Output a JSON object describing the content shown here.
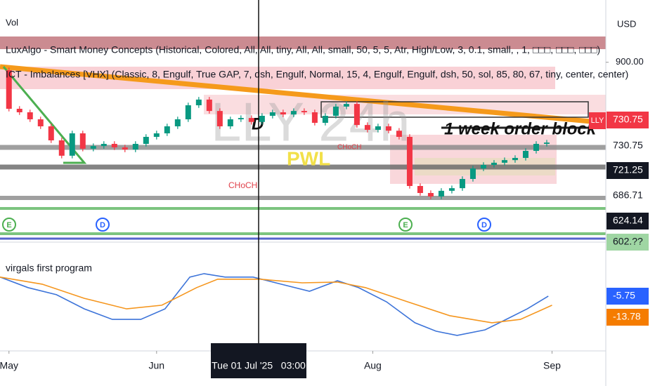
{
  "header": {
    "volume_label": "Vol",
    "currency": "USD",
    "indicators": [
      "LuxAlgo - Smart Money Concepts (Historical, Colored, All, All, tiny, All, All, small, 50, 5, 5, Atr, High/Low, 3, 0.1, small, , 1, □□□, □□□, □□□)",
      "ICT - Imbalances [VHX] (Classic, 8, Engulf, True GAP, 7, dsh, Engulf, Normal, 15, 4, Engulf, Engulf, dsh, 50, sol, 85, 80, 67, tiny, center, center)"
    ]
  },
  "crosshair_label": "Tue 01 Jul '25   03:00",
  "chart_data": [
    {
      "type": "candlestick",
      "symbol": "LLY",
      "watermark": "LLY 24h",
      "up_color": "#089981",
      "down_color": "#f23645",
      "x": [
        0,
        2,
        4,
        6,
        8,
        10,
        12,
        14,
        16,
        18,
        20,
        22,
        24,
        26,
        28,
        30,
        32,
        34,
        36,
        38,
        40,
        42,
        44,
        46,
        48,
        50,
        52,
        54,
        56,
        58,
        60,
        62,
        64,
        66,
        68,
        70,
        72,
        74,
        76,
        78,
        80,
        82,
        84,
        86,
        88,
        90,
        92,
        94,
        96,
        98,
        100,
        102
      ],
      "open": [
        882,
        794,
        786,
        770,
        754,
        722,
        687,
        738,
        703,
        709,
        714,
        706,
        701,
        714,
        730,
        738,
        754,
        770,
        802,
        815,
        789,
        754,
        770,
        773,
        764,
        778,
        786,
        781,
        789,
        786,
        762,
        778,
        799,
        805,
        757,
        746,
        754,
        744,
        730,
        618,
        602,
        594,
        607,
        613,
        634,
        658,
        666,
        671,
        677,
        682,
        698,
        714
      ],
      "high": [
        888,
        800,
        792,
        776,
        760,
        728,
        744,
        744,
        715,
        720,
        720,
        712,
        720,
        736,
        744,
        760,
        776,
        808,
        821,
        821,
        795,
        776,
        779,
        779,
        784,
        792,
        792,
        795,
        795,
        792,
        784,
        805,
        811,
        811,
        763,
        760,
        760,
        750,
        736,
        624,
        608,
        613,
        619,
        640,
        664,
        672,
        677,
        683,
        688,
        704,
        720,
        723
      ],
      "low": [
        788,
        780,
        764,
        748,
        716,
        681,
        681,
        697,
        697,
        703,
        700,
        695,
        695,
        708,
        724,
        732,
        748,
        764,
        796,
        783,
        748,
        748,
        764,
        758,
        758,
        772,
        775,
        775,
        780,
        756,
        756,
        772,
        793,
        751,
        740,
        740,
        738,
        724,
        612,
        596,
        588,
        588,
        601,
        607,
        628,
        652,
        660,
        665,
        671,
        676,
        692,
        708
      ],
      "close": [
        794,
        786,
        770,
        754,
        722,
        687,
        738,
        703,
        709,
        714,
        706,
        701,
        714,
        730,
        738,
        754,
        770,
        802,
        815,
        789,
        754,
        770,
        773,
        764,
        778,
        786,
        781,
        789,
        786,
        762,
        778,
        799,
        805,
        757,
        746,
        754,
        744,
        730,
        618,
        602,
        594,
        607,
        613,
        634,
        658,
        666,
        671,
        677,
        682,
        698,
        714,
        717
      ],
      "xlim": [
        -1.7,
        113.2
      ],
      "ylim": [
        490,
        970
      ],
      "xticks": [
        {
          "value": 0,
          "label": "May"
        },
        {
          "value": 28,
          "label": "Jun"
        },
        {
          "value": 69,
          "label": "Aug"
        },
        {
          "value": 103,
          "label": "Sep"
        }
      ],
      "yticks": [
        {
          "value": 900,
          "label": "900.00"
        }
      ],
      "price_tags": [
        "730.75",
        "730.75",
        "721.25",
        "686.71",
        "624.14",
        "602.??"
      ],
      "annotations": [
        "1 week order block",
        "D",
        "CHoCH",
        "CHoCH",
        "PWL"
      ],
      "events": [
        "E",
        "D",
        "E",
        "D"
      ]
    },
    {
      "type": "line",
      "title": "virgals first program",
      "ylim": [
        -26.6,
        14.8
      ],
      "series": [
        {
          "color": "#3d74d9",
          "x": [
            -1.7,
            3.6,
            9,
            14.3,
            19.6,
            25,
            29.6,
            34.3,
            37,
            41,
            46.3,
            51.6,
            57,
            62.3,
            66.3,
            71.6,
            77,
            81,
            85,
            90.3,
            94.3,
            98.3,
            102.3
          ],
          "values": [
            1.5,
            -2.5,
            -5.2,
            -10.6,
            -14.6,
            -14.6,
            -10.6,
            1.5,
            2.8,
            1.5,
            1.5,
            -1.2,
            -3.9,
            0.1,
            -2.5,
            -7.9,
            -15.9,
            -19.1,
            -20.7,
            -18.6,
            -14.6,
            -10.6,
            -5.75
          ]
        },
        {
          "color": "#f5961e",
          "x": [
            -1.7,
            6.3,
            14.3,
            22.3,
            29,
            35.6,
            39.6,
            47.6,
            55.6,
            62.3,
            67.6,
            75.6,
            83.6,
            91.6,
            97,
            103
          ],
          "values": [
            1.5,
            -1.2,
            -6.6,
            -10.6,
            -9.2,
            -2.5,
            0.7,
            0.7,
            -0.7,
            -0.4,
            -2.5,
            -7.9,
            -13.2,
            -15.9,
            -14.6,
            -9.2
          ]
        }
      ],
      "tags": [
        "-5.75",
        "-13.78"
      ]
    }
  ]
}
